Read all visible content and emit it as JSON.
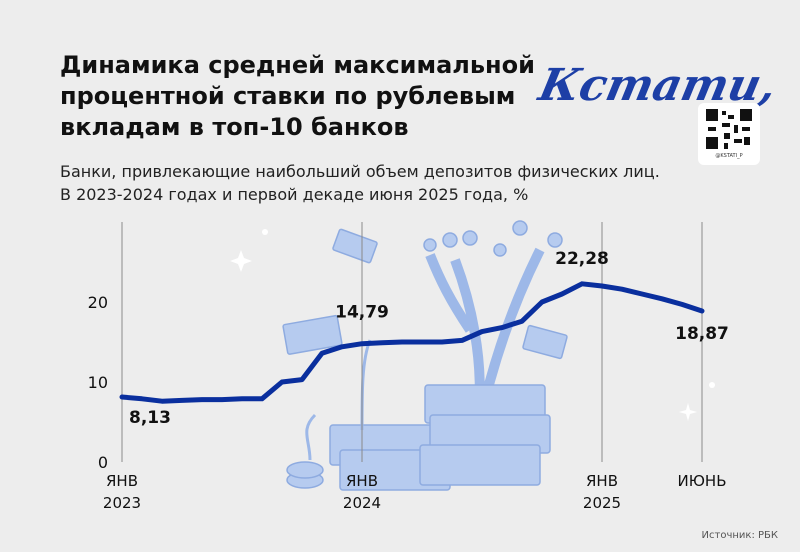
{
  "chart_data": {
    "type": "line",
    "title": "Динамика средней максимальной\nпроцентной ставки по рублевым\nвкладам в топ-10 банков",
    "subtitle": "Банки, привлекающие наибольший объем депозитов физических лиц.\nВ 2023-2024 годах и первой декаде июня 2025 года, %",
    "logo": "Кстати,",
    "qr_caption": "@KSTATI_P",
    "source": "Источник: РБК",
    "color": "#0a2f9e",
    "x": [
      "2023-01",
      "2023-02",
      "2023-03",
      "2023-04",
      "2023-05",
      "2023-06",
      "2023-07",
      "2023-08",
      "2023-09",
      "2023-10",
      "2023-11",
      "2023-12",
      "2024-01",
      "2024-02",
      "2024-03",
      "2024-04",
      "2024-05",
      "2024-06",
      "2024-07",
      "2024-08",
      "2024-09",
      "2024-10",
      "2024-11",
      "2024-12",
      "2025-01",
      "2025-02",
      "2025-03",
      "2025-04",
      "2025-05",
      "2025-06"
    ],
    "values": [
      8.13,
      7.9,
      7.6,
      7.7,
      7.8,
      7.8,
      7.9,
      7.9,
      10.0,
      10.3,
      13.6,
      14.4,
      14.79,
      14.9,
      15.0,
      15.0,
      15.0,
      15.2,
      16.3,
      16.8,
      17.6,
      20.0,
      21.0,
      22.28,
      22.0,
      21.6,
      21.0,
      20.4,
      19.7,
      18.87
    ],
    "value_labels": [
      "8,13",
      null,
      null,
      null,
      null,
      null,
      null,
      null,
      null,
      null,
      null,
      null,
      "14,79",
      null,
      null,
      null,
      null,
      null,
      null,
      null,
      null,
      null,
      null,
      "22,28",
      null,
      null,
      null,
      null,
      null,
      "18,87"
    ],
    "ylim": [
      0,
      30
    ],
    "yticks": [
      0,
      10,
      20
    ],
    "xticks": [
      {
        "value": "2023-01",
        "label": "ЯНВ\n2023"
      },
      {
        "value": "2024-01",
        "label": "ЯНВ\n2024"
      },
      {
        "value": "2025-01",
        "label": "ЯНВ\n2025"
      },
      {
        "value": "2025-06",
        "label": "ИЮНЬ"
      }
    ],
    "grid": true
  }
}
